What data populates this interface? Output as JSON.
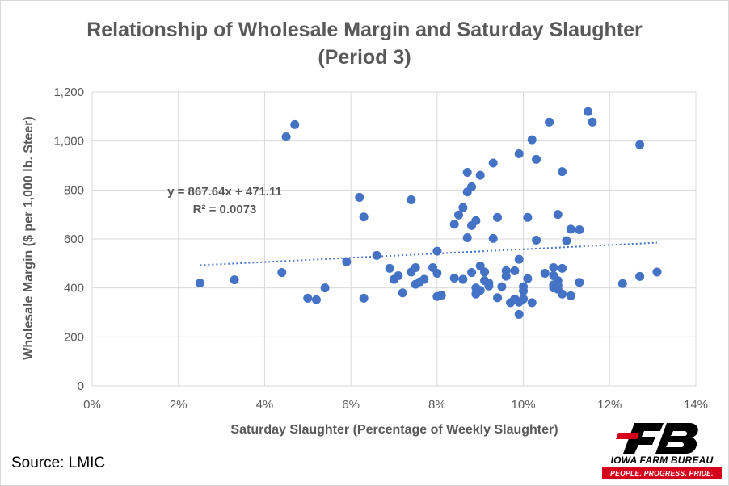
{
  "chart_data": {
    "type": "scatter",
    "title": [
      "Relationship of Wholesale Margin and Saturday Slaughter",
      "(Period 3)"
    ],
    "xlabel": "Saturday Slaughter (Percentage of Weekly Slaughter)",
    "ylabel": "Wholesale Margin ($ per 1,000 lb. Steer)",
    "xlim": [
      0,
      0.14
    ],
    "ylim": [
      0,
      1200
    ],
    "x_ticks": [
      0,
      0.02,
      0.04,
      0.06,
      0.08,
      0.1,
      0.12,
      0.14
    ],
    "x_tick_labels": [
      "0%",
      "2%",
      "4%",
      "6%",
      "8%",
      "10%",
      "12%",
      "14%"
    ],
    "y_ticks": [
      0,
      200,
      400,
      600,
      800,
      1000,
      1200
    ],
    "y_tick_labels": [
      "0",
      "200",
      "400",
      "600",
      "800",
      "1,000",
      "1,200"
    ],
    "grid": true,
    "marker_color": "#4472c4",
    "trendline": {
      "type": "linear",
      "slope": 867.64,
      "intercept": 471.11,
      "x_range": [
        0.025,
        0.131
      ],
      "equation_label": "y = 867.64x + 471.11",
      "r2_label": "R² = 0.0073",
      "style": "dotted",
      "color": "#4472c4"
    },
    "points": [
      [
        0.025,
        420
      ],
      [
        0.033,
        433
      ],
      [
        0.044,
        463
      ],
      [
        0.045,
        1017
      ],
      [
        0.047,
        1067
      ],
      [
        0.05,
        358
      ],
      [
        0.052,
        352
      ],
      [
        0.054,
        400
      ],
      [
        0.059,
        507
      ],
      [
        0.062,
        770
      ],
      [
        0.063,
        690
      ],
      [
        0.063,
        358
      ],
      [
        0.066,
        533
      ],
      [
        0.069,
        480
      ],
      [
        0.07,
        435
      ],
      [
        0.071,
        450
      ],
      [
        0.072,
        380
      ],
      [
        0.074,
        465
      ],
      [
        0.075,
        483
      ],
      [
        0.074,
        760
      ],
      [
        0.075,
        415
      ],
      [
        0.076,
        425
      ],
      [
        0.077,
        435
      ],
      [
        0.079,
        483
      ],
      [
        0.08,
        460
      ],
      [
        0.08,
        550
      ],
      [
        0.08,
        365
      ],
      [
        0.081,
        370
      ],
      [
        0.084,
        660
      ],
      [
        0.084,
        440
      ],
      [
        0.085,
        698
      ],
      [
        0.086,
        728
      ],
      [
        0.086,
        435
      ],
      [
        0.087,
        792
      ],
      [
        0.087,
        872
      ],
      [
        0.087,
        605
      ],
      [
        0.088,
        813
      ],
      [
        0.088,
        655
      ],
      [
        0.088,
        463
      ],
      [
        0.089,
        675
      ],
      [
        0.089,
        375
      ],
      [
        0.089,
        400
      ],
      [
        0.09,
        860
      ],
      [
        0.09,
        390
      ],
      [
        0.09,
        490
      ],
      [
        0.091,
        465
      ],
      [
        0.091,
        430
      ],
      [
        0.092,
        420
      ],
      [
        0.092,
        408
      ],
      [
        0.093,
        910
      ],
      [
        0.093,
        602
      ],
      [
        0.094,
        688
      ],
      [
        0.094,
        360
      ],
      [
        0.095,
        405
      ],
      [
        0.096,
        470
      ],
      [
        0.096,
        448
      ],
      [
        0.097,
        340
      ],
      [
        0.098,
        355
      ],
      [
        0.098,
        470
      ],
      [
        0.099,
        948
      ],
      [
        0.099,
        517
      ],
      [
        0.099,
        292
      ],
      [
        0.099,
        342
      ],
      [
        0.1,
        388
      ],
      [
        0.1,
        405
      ],
      [
        0.1,
        355
      ],
      [
        0.101,
        688
      ],
      [
        0.101,
        438
      ],
      [
        0.102,
        1005
      ],
      [
        0.102,
        340
      ],
      [
        0.103,
        595
      ],
      [
        0.103,
        925
      ],
      [
        0.105,
        460
      ],
      [
        0.106,
        1077
      ],
      [
        0.107,
        450
      ],
      [
        0.107,
        483
      ],
      [
        0.107,
        413
      ],
      [
        0.107,
        400
      ],
      [
        0.108,
        395
      ],
      [
        0.108,
        430
      ],
      [
        0.108,
        700
      ],
      [
        0.108,
        410
      ],
      [
        0.109,
        875
      ],
      [
        0.109,
        480
      ],
      [
        0.109,
        375
      ],
      [
        0.11,
        593
      ],
      [
        0.111,
        640
      ],
      [
        0.111,
        368
      ],
      [
        0.113,
        638
      ],
      [
        0.113,
        423
      ],
      [
        0.115,
        1120
      ],
      [
        0.116,
        1077
      ],
      [
        0.123,
        418
      ],
      [
        0.127,
        985
      ],
      [
        0.127,
        447
      ],
      [
        0.131,
        465
      ]
    ]
  },
  "source": "Source: LMIC",
  "logo": {
    "name": "IOWA FARM BUREAU",
    "tagline": "PEOPLE. PROGRESS. PRIDE.",
    "colors": {
      "primary": "#000000",
      "accent": "#d6001c"
    }
  }
}
